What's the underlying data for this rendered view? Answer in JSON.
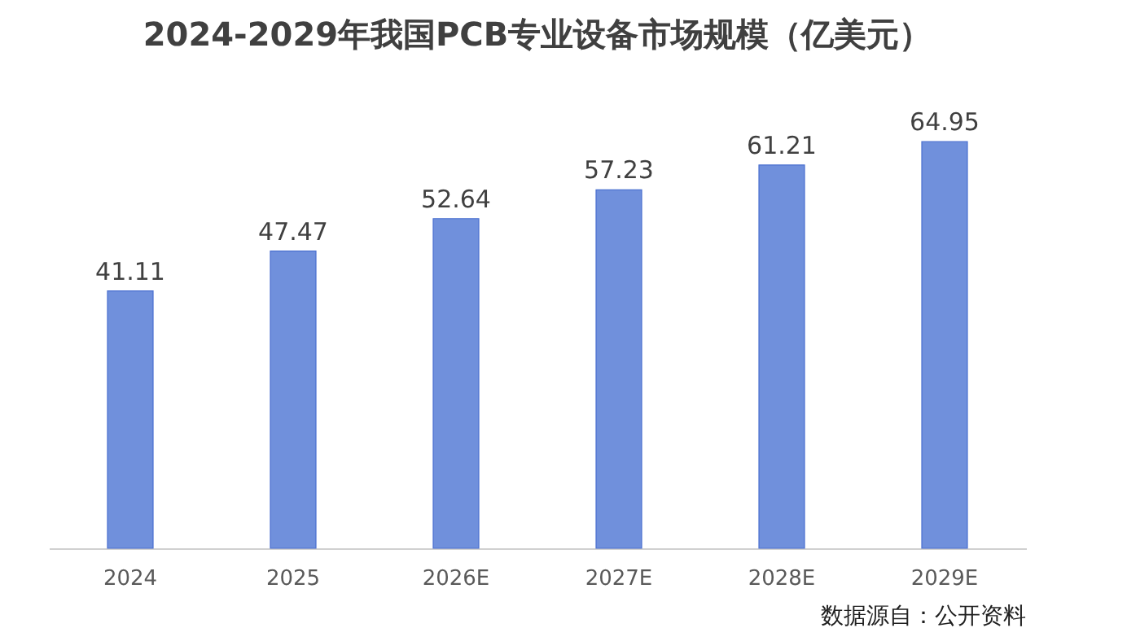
{
  "chart_data": {
    "type": "bar",
    "title": "2024-2029年我国PCB专业设备市场规模（亿美元）",
    "categories": [
      "2024",
      "2025",
      "2026E",
      "2027E",
      "2028E",
      "2029E"
    ],
    "values": [
      41.11,
      47.47,
      52.64,
      57.23,
      61.21,
      64.95
    ],
    "color": "#7090dc",
    "data_labels": true,
    "grid": false,
    "tick_labels": "x",
    "annotations": [
      "数据源自：公开资料"
    ]
  }
}
